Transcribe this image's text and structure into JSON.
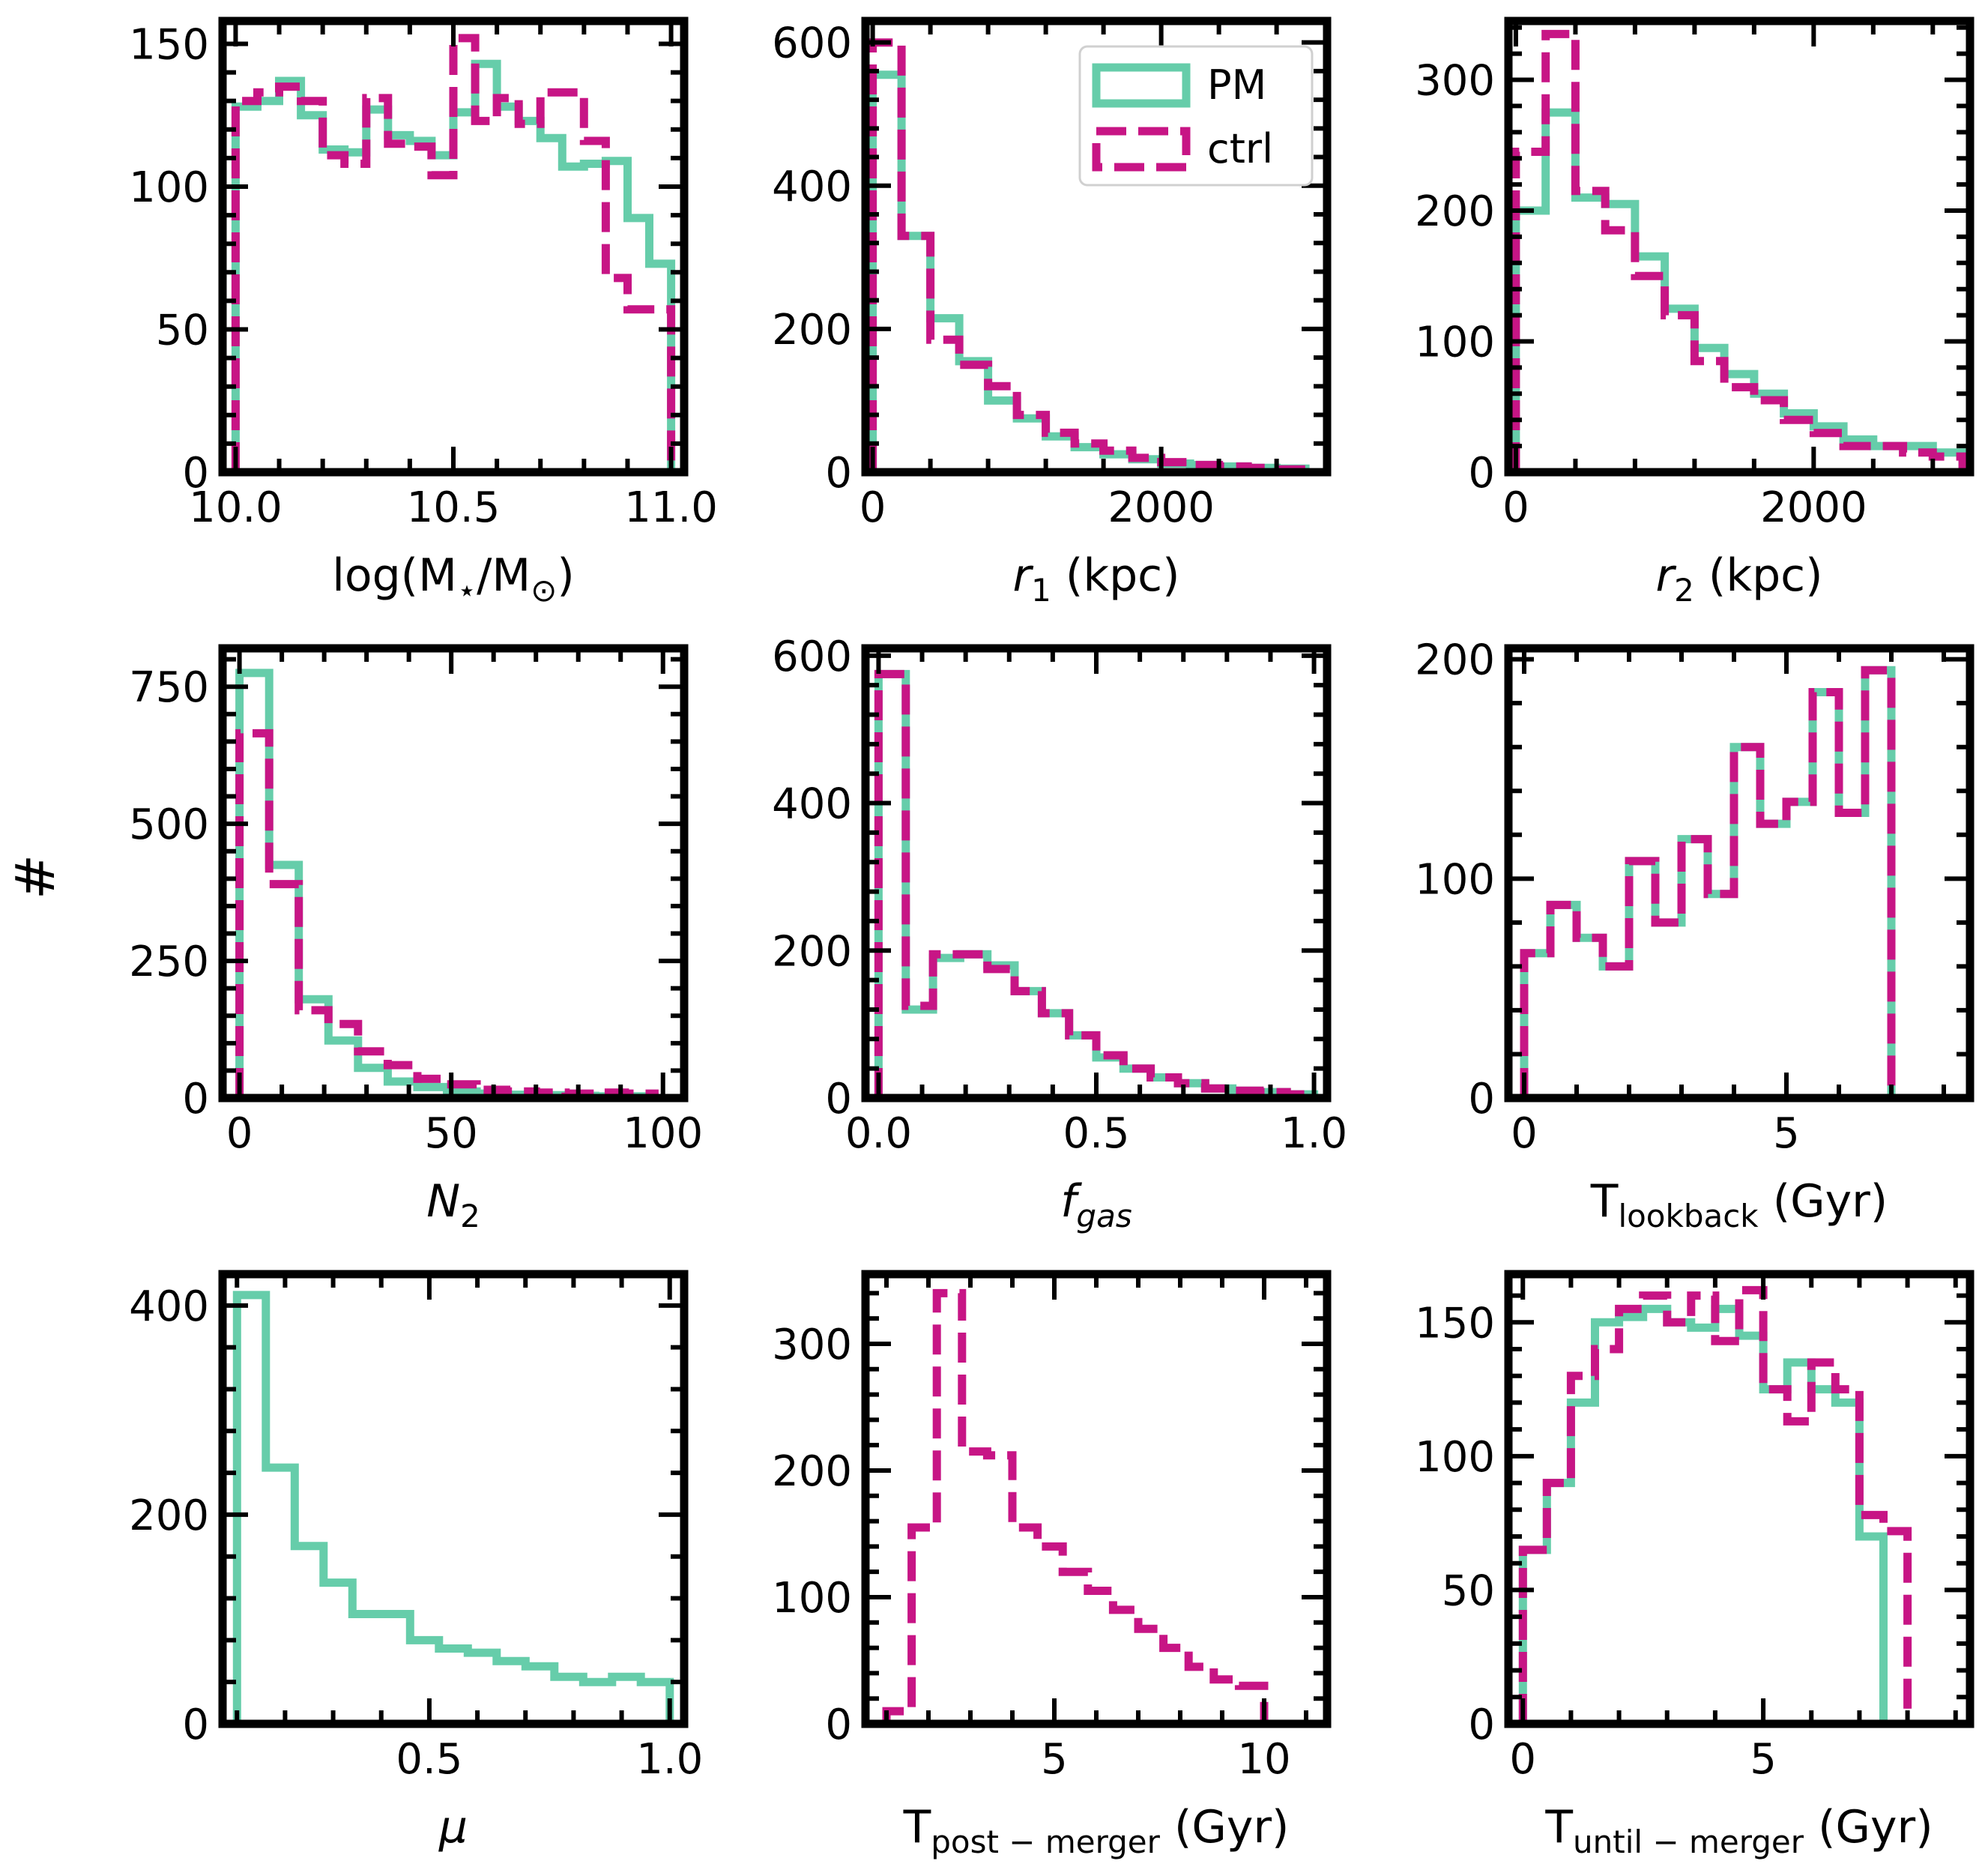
{
  "figure": {
    "ylabel": "#",
    "colors": {
      "pm": "#66cdaa",
      "ctrl": "#c71585"
    },
    "legend": {
      "location": "top-right",
      "entries": [
        {
          "name": "PM",
          "style": "solid",
          "color": "#66cdaa"
        },
        {
          "name": "ctrl",
          "style": "dashed",
          "color": "#c71585"
        }
      ]
    }
  },
  "chart_data": [
    {
      "type": "histogram",
      "xlabel": {
        "base": "log(M",
        "sub": "⋆",
        "mid": "/M",
        "sub2": "⊙",
        "tail": ")",
        "italic": false
      },
      "xlim": [
        9.97,
        11.03
      ],
      "ylim": [
        0,
        158
      ],
      "xticks": [
        10.0,
        10.5,
        11.0
      ],
      "xtick_labels": [
        "10.0",
        "10.5",
        "11.0"
      ],
      "yticks": [
        0,
        50,
        100,
        150
      ],
      "ytick_labels": [
        "0",
        "50",
        "100",
        "150"
      ],
      "series": [
        {
          "name": "PM",
          "style": "solid",
          "edges": [
            10.0,
            10.05,
            10.1,
            10.15,
            10.2,
            10.25,
            10.3,
            10.35,
            10.4,
            10.45,
            10.5,
            10.55,
            10.6,
            10.65,
            10.7,
            10.75,
            10.8,
            10.85,
            10.9,
            10.95,
            11.0
          ],
          "counts": [
            128,
            130,
            137,
            125,
            113,
            112,
            127,
            118,
            116,
            111,
            126,
            143,
            128,
            123,
            117,
            107,
            108,
            109,
            89,
            73
          ]
        },
        {
          "name": "ctrl",
          "style": "dashed",
          "edges": [
            10.0,
            10.05,
            10.1,
            10.15,
            10.2,
            10.25,
            10.3,
            10.35,
            10.4,
            10.45,
            10.5,
            10.55,
            10.6,
            10.65,
            10.7,
            10.75,
            10.8,
            10.85,
            10.9,
            10.95,
            11.0
          ],
          "counts": [
            130,
            133,
            135,
            130,
            111,
            108,
            131,
            115,
            114,
            104,
            152,
            123,
            131,
            122,
            133,
            133,
            116,
            68,
            57,
            57
          ]
        }
      ],
      "legend": false
    },
    {
      "type": "histogram",
      "xlabel": {
        "base": "r",
        "sub": "1",
        "tail": " (kpc)",
        "italic": true
      },
      "xlim": [
        -50,
        3150
      ],
      "ylim": [
        0,
        630
      ],
      "xticks": [
        0,
        2000
      ],
      "xtick_labels": [
        "0",
        "2000"
      ],
      "yticks": [
        0,
        200,
        400,
        600
      ],
      "ytick_labels": [
        "0",
        "200",
        "400",
        "600"
      ],
      "series": [
        {
          "name": "PM",
          "style": "solid",
          "edges": [
            0,
            200,
            400,
            600,
            800,
            1000,
            1200,
            1400,
            1600,
            1800,
            2000,
            2200,
            2400,
            2600,
            2800,
            3000
          ],
          "counts": [
            555,
            330,
            215,
            155,
            100,
            75,
            50,
            35,
            25,
            18,
            12,
            10,
            8,
            6,
            5
          ]
        },
        {
          "name": "ctrl",
          "style": "dashed",
          "edges": [
            0,
            200,
            400,
            600,
            800,
            1000,
            1200,
            1400,
            1600,
            1800,
            2000,
            2200,
            2400,
            2600,
            2800,
            3000
          ],
          "counts": [
            600,
            330,
            185,
            150,
            120,
            80,
            55,
            40,
            30,
            20,
            14,
            10,
            8,
            6,
            4
          ]
        }
      ],
      "legend": true
    },
    {
      "type": "histogram",
      "xlabel": {
        "base": "r",
        "sub": "2",
        "tail": " (kpc)",
        "italic": true
      },
      "xlim": [
        -50,
        3050
      ],
      "ylim": [
        0,
        345
      ],
      "xticks": [
        0,
        2000
      ],
      "xtick_labels": [
        "0",
        "2000"
      ],
      "yticks": [
        0,
        100,
        200,
        300
      ],
      "ytick_labels": [
        "0",
        "100",
        "200",
        "300"
      ],
      "series": [
        {
          "name": "PM",
          "style": "solid",
          "edges": [
            0,
            200,
            400,
            600,
            800,
            1000,
            1200,
            1400,
            1600,
            1800,
            2000,
            2200,
            2400,
            2600,
            2800,
            3000
          ],
          "counts": [
            200,
            275,
            210,
            205,
            165,
            125,
            95,
            75,
            60,
            45,
            35,
            25,
            20,
            20,
            15
          ]
        },
        {
          "name": "ctrl",
          "style": "dashed",
          "edges": [
            0,
            200,
            400,
            600,
            800,
            1000,
            1200,
            1400,
            1600,
            1800,
            2000,
            2200,
            2400,
            2600,
            2800,
            3000
          ],
          "counts": [
            245,
            335,
            215,
            185,
            150,
            120,
            85,
            65,
            55,
            40,
            30,
            20,
            20,
            15,
            12
          ]
        }
      ],
      "legend": false
    },
    {
      "type": "histogram",
      "xlabel": {
        "base": "N",
        "sub": "2",
        "tail": "",
        "italic": true
      },
      "xlim": [
        -4,
        105
      ],
      "ylim": [
        0,
        820
      ],
      "xticks": [
        0,
        50,
        100
      ],
      "xtick_labels": [
        "0",
        "50",
        "100"
      ],
      "yticks": [
        0,
        250,
        500,
        750
      ],
      "ytick_labels": [
        "0",
        "250",
        "500",
        "750"
      ],
      "series": [
        {
          "name": "PM",
          "style": "solid",
          "edges": [
            0,
            7,
            14,
            21,
            28,
            35,
            42,
            49,
            56,
            63,
            70,
            77,
            84,
            91,
            98
          ],
          "counts": [
            775,
            425,
            180,
            105,
            55,
            30,
            20,
            12,
            8,
            6,
            5,
            4,
            3,
            3
          ]
        },
        {
          "name": "ctrl",
          "style": "dashed",
          "edges": [
            0,
            7,
            14,
            21,
            28,
            35,
            42,
            49,
            56,
            63,
            70,
            77,
            84,
            91,
            98
          ],
          "counts": [
            665,
            390,
            160,
            135,
            85,
            60,
            35,
            25,
            15,
            12,
            10,
            8,
            10,
            8
          ]
        }
      ],
      "legend": false
    },
    {
      "type": "histogram",
      "xlabel": {
        "base": "f",
        "sub": "gas",
        "tail": "",
        "italic": true
      },
      "xlim": [
        -0.03,
        1.03
      ],
      "ylim": [
        0,
        610
      ],
      "xticks": [
        0.0,
        0.5,
        1.0
      ],
      "xtick_labels": [
        "0.0",
        "0.5",
        "1.0"
      ],
      "yticks": [
        0,
        200,
        400,
        600
      ],
      "ytick_labels": [
        "0",
        "200",
        "400",
        "600"
      ],
      "series": [
        {
          "name": "PM",
          "style": "solid",
          "edges": [
            0.0,
            0.0625,
            0.125,
            0.1875,
            0.25,
            0.3125,
            0.375,
            0.4375,
            0.5,
            0.5625,
            0.625,
            0.6875,
            0.75,
            0.8125,
            0.875,
            0.9375,
            1.0
          ],
          "counts": [
            575,
            120,
            190,
            195,
            180,
            145,
            115,
            85,
            55,
            40,
            28,
            20,
            13,
            10,
            8,
            5
          ]
        },
        {
          "name": "ctrl",
          "style": "dashed",
          "edges": [
            0.0,
            0.0625,
            0.125,
            0.1875,
            0.25,
            0.3125,
            0.375,
            0.4375,
            0.5,
            0.5625,
            0.625,
            0.6875,
            0.75,
            0.8125,
            0.875,
            0.9375,
            1.0
          ],
          "counts": [
            575,
            125,
            195,
            195,
            175,
            145,
            115,
            85,
            58,
            40,
            28,
            20,
            13,
            10,
            8,
            5
          ]
        }
      ],
      "legend": false
    },
    {
      "type": "histogram",
      "xlabel": {
        "base": "T",
        "sub": "lookback",
        "tail": " (Gyr)",
        "italic": false
      },
      "xlim": [
        -0.3,
        8.5
      ],
      "ylim": [
        0,
        205
      ],
      "xticks": [
        0,
        5
      ],
      "xtick_labels": [
        "0",
        "5"
      ],
      "yticks": [
        0,
        100,
        200
      ],
      "ytick_labels": [
        "0",
        "100",
        "200"
      ],
      "series": [
        {
          "name": "PM",
          "style": "solid",
          "edges": [
            0.0,
            0.5,
            1.0,
            1.5,
            2.0,
            2.5,
            3.0,
            3.5,
            4.0,
            4.5,
            5.0,
            5.5,
            6.0,
            6.5,
            7.0,
            7.5,
            8.0
          ],
          "counts": [
            66,
            88,
            73,
            60,
            108,
            80,
            118,
            93,
            160,
            125,
            135,
            185,
            130,
            195,
            0,
            0
          ]
        },
        {
          "name": "ctrl",
          "style": "dashed",
          "edges": [
            0.0,
            0.5,
            1.0,
            1.5,
            2.0,
            2.5,
            3.0,
            3.5,
            4.0,
            4.5,
            5.0,
            5.5,
            6.0,
            6.5,
            7.0,
            7.5,
            8.0
          ],
          "counts": [
            66,
            88,
            73,
            60,
            108,
            80,
            118,
            93,
            160,
            125,
            135,
            185,
            130,
            195,
            0,
            0
          ]
        }
      ],
      "legend": false
    },
    {
      "type": "histogram",
      "xlabel": {
        "base": "μ",
        "sub": "",
        "tail": "",
        "italic": true
      },
      "xlim": [
        0.07,
        1.03
      ],
      "ylim": [
        0,
        430
      ],
      "xticks": [
        0.5,
        1.0
      ],
      "xtick_labels": [
        "0.5",
        "1.0"
      ],
      "yticks": [
        0,
        200,
        400
      ],
      "ytick_labels": [
        "0",
        "200",
        "400"
      ],
      "series": [
        {
          "name": "PM",
          "style": "solid",
          "edges": [
            0.1,
            0.16,
            0.22,
            0.28,
            0.34,
            0.4,
            0.46,
            0.52,
            0.58,
            0.64,
            0.7,
            0.76,
            0.82,
            0.88,
            0.94,
            1.0
          ],
          "counts": [
            410,
            245,
            170,
            135,
            105,
            105,
            80,
            72,
            68,
            60,
            55,
            45,
            40,
            45,
            40
          ]
        }
      ],
      "legend": false
    },
    {
      "type": "histogram",
      "xlabel": {
        "base": "T",
        "sub": "post − merger",
        "tail": " (Gyr)",
        "italic": false
      },
      "xlim": [
        0.5,
        11.5
      ],
      "ylim": [
        0,
        355
      ],
      "xticks": [
        5,
        10
      ],
      "xtick_labels": [
        "5",
        "10"
      ],
      "yticks": [
        0,
        100,
        200,
        300
      ],
      "ytick_labels": [
        "0",
        "100",
        "200",
        "300"
      ],
      "series": [
        {
          "name": "ctrl",
          "style": "dashed",
          "edges": [
            1.0,
            1.6,
            2.2,
            2.8,
            3.4,
            4.0,
            4.6,
            5.2,
            5.8,
            6.4,
            7.0,
            7.6,
            8.2,
            8.8,
            9.4,
            10.0,
            10.6
          ],
          "counts": [
            10,
            155,
            340,
            215,
            212,
            155,
            140,
            120,
            105,
            90,
            75,
            60,
            45,
            35,
            30,
            0
          ]
        }
      ],
      "legend": false
    },
    {
      "type": "histogram",
      "xlabel": {
        "base": "T",
        "sub": "until − merger",
        "tail": " (Gyr)",
        "italic": false
      },
      "xlim": [
        -0.3,
        9.3
      ],
      "ylim": [
        0,
        168
      ],
      "xticks": [
        0,
        5
      ],
      "xtick_labels": [
        "0",
        "5"
      ],
      "yticks": [
        0,
        50,
        100,
        150
      ],
      "ytick_labels": [
        "0",
        "50",
        "100",
        "150"
      ],
      "series": [
        {
          "name": "PM",
          "style": "solid",
          "edges": [
            0.0,
            0.5,
            1.0,
            1.5,
            2.0,
            2.5,
            3.0,
            3.5,
            4.0,
            4.5,
            5.0,
            5.5,
            6.0,
            6.5,
            7.0,
            7.5,
            8.0,
            8.5
          ],
          "counts": [
            65,
            90,
            120,
            150,
            152,
            155,
            150,
            148,
            155,
            145,
            125,
            135,
            125,
            120,
            70,
            0,
            0
          ]
        },
        {
          "name": "ctrl",
          "style": "dashed",
          "edges": [
            0.0,
            0.5,
            1.0,
            1.5,
            2.0,
            2.5,
            3.0,
            3.5,
            4.0,
            4.5,
            5.0,
            5.5,
            6.0,
            6.5,
            7.0,
            7.5,
            8.0,
            8.5
          ],
          "counts": [
            65,
            90,
            130,
            140,
            155,
            160,
            150,
            160,
            143,
            162,
            125,
            113,
            135,
            125,
            78,
            72,
            0
          ]
        }
      ],
      "legend": false
    }
  ]
}
